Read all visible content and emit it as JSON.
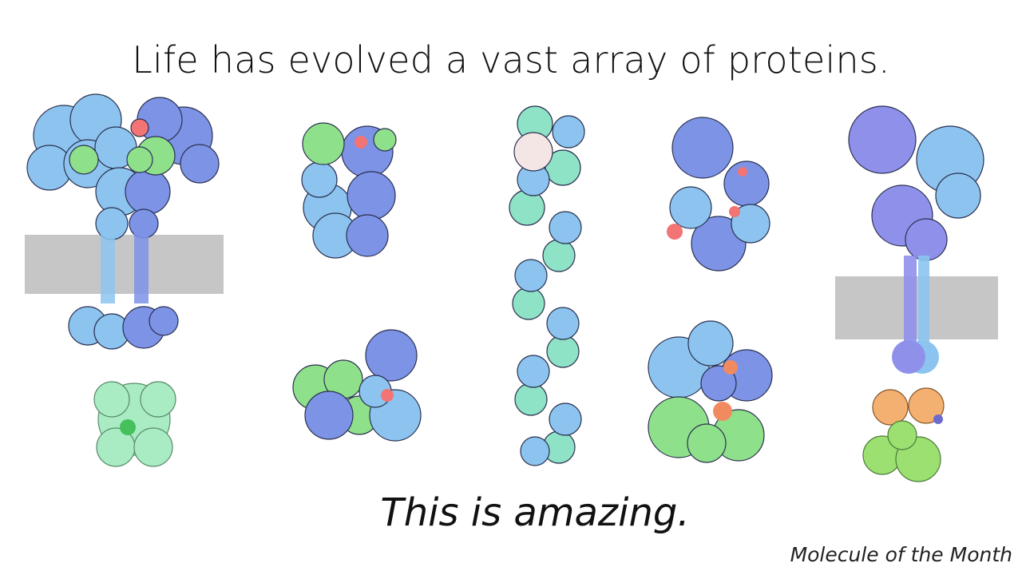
{
  "slide": {
    "title": "Life has evolved a vast array of proteins.",
    "tagline": "This is amazing.",
    "credit": "Molecule of the Month"
  },
  "colors": {
    "protein_light_blue": "#8cc4ef",
    "protein_blue": "#7c93e6",
    "protein_violet": "#8f90ea",
    "protein_green": "#8fe08a",
    "protein_mint": "#a9ecc4",
    "protein_teal": "#8ee2c6",
    "highlight_red": "#f27474",
    "highlight_orange": "#f4b070",
    "membrane_gray": "#c6c6c6",
    "text": "#111111"
  },
  "illustrations": [
    "receptor-protein-with-membrane",
    "green-barrel-protein",
    "blue-green-cylinder-protein",
    "blue-green-cluster-protein",
    "filament-protein",
    "blue-red-cluster-protein",
    "blue-green-red-complex-protein",
    "large-receptor-protein-with-membrane",
    "orange-yellow-green-protein"
  ]
}
